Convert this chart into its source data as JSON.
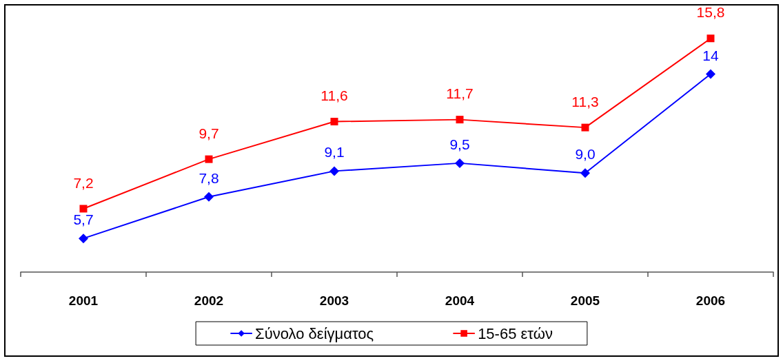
{
  "chart_data": {
    "type": "line",
    "categories": [
      "2001",
      "2002",
      "2003",
      "2004",
      "2005",
      "2006"
    ],
    "series": [
      {
        "name": "Σύνολο δείγματος",
        "color": "#0000ff",
        "marker": "diamond",
        "values": [
          5.7,
          7.8,
          9.1,
          9.5,
          9.0,
          14
        ],
        "value_labels": [
          "5,7",
          "7,8",
          "9,1",
          "9,5",
          "9,0",
          "14"
        ]
      },
      {
        "name": "15-65 ετών",
        "color": "#ff0000",
        "marker": "square",
        "values": [
          7.2,
          9.7,
          11.6,
          11.7,
          11.3,
          15.8
        ],
        "value_labels": [
          "7,2",
          "9,7",
          "11,6",
          "11,7",
          "11,3",
          "15,8"
        ]
      }
    ],
    "tick_labels": "x",
    "grid": false,
    "legend": "bottom",
    "line_style": "solid"
  }
}
